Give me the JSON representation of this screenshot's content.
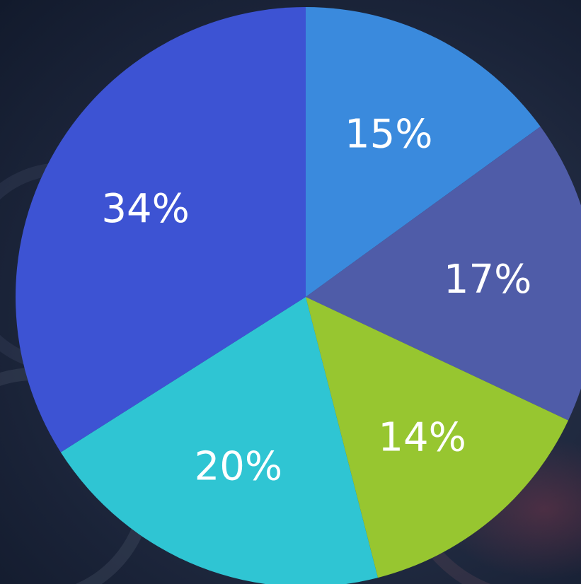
{
  "chart_data": {
    "type": "pie",
    "title": "",
    "slices": [
      {
        "label": "15%",
        "value": 15,
        "color": "#3a8add"
      },
      {
        "label": "17%",
        "value": 17,
        "color": "#4f5ca8"
      },
      {
        "label": "14%",
        "value": 14,
        "color": "#97c630"
      },
      {
        "label": "20%",
        "value": 20,
        "color": "#2fc5d3"
      },
      {
        "label": "34%",
        "value": 34,
        "color": "#3d53d3"
      }
    ],
    "start_angle_deg": 0,
    "direction": "clockwise",
    "legend": "none"
  }
}
